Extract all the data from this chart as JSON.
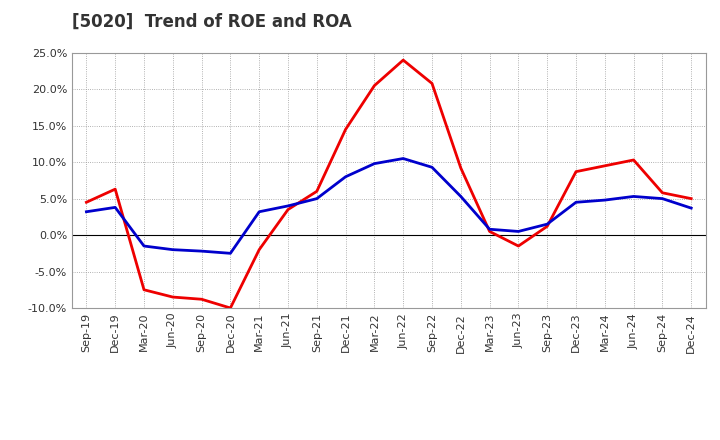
{
  "title": "[5020]  Trend of ROE and ROA",
  "labels": [
    "Sep-19",
    "Dec-19",
    "Mar-20",
    "Jun-20",
    "Sep-20",
    "Dec-20",
    "Mar-21",
    "Jun-21",
    "Sep-21",
    "Dec-21",
    "Mar-22",
    "Jun-22",
    "Sep-22",
    "Dec-22",
    "Mar-23",
    "Jun-23",
    "Sep-23",
    "Dec-23",
    "Mar-24",
    "Jun-24",
    "Sep-24",
    "Dec-24"
  ],
  "ROE": [
    4.5,
    6.3,
    -7.5,
    -8.5,
    -8.8,
    -10.0,
    -2.0,
    3.5,
    6.0,
    14.5,
    20.5,
    24.0,
    20.8,
    9.2,
    0.5,
    -1.5,
    1.2,
    8.7,
    9.5,
    10.3,
    5.8,
    5.0
  ],
  "ROA": [
    3.2,
    3.8,
    -1.5,
    -2.0,
    -2.2,
    -2.5,
    3.2,
    4.0,
    5.0,
    8.0,
    9.8,
    10.5,
    9.3,
    5.3,
    0.8,
    0.5,
    1.5,
    4.5,
    4.8,
    5.3,
    5.0,
    3.7
  ],
  "ROE_color": "#ee0000",
  "ROA_color": "#0000cc",
  "ylim_min": -10.0,
  "ylim_max": 25.0,
  "yticks": [
    -10.0,
    -5.0,
    0.0,
    5.0,
    10.0,
    15.0,
    20.0,
    25.0
  ],
  "background_color": "#ffffff",
  "grid_color": "#999999",
  "line_width": 2.0,
  "title_fontsize": 12,
  "tick_fontsize": 8,
  "legend_fontsize": 10
}
